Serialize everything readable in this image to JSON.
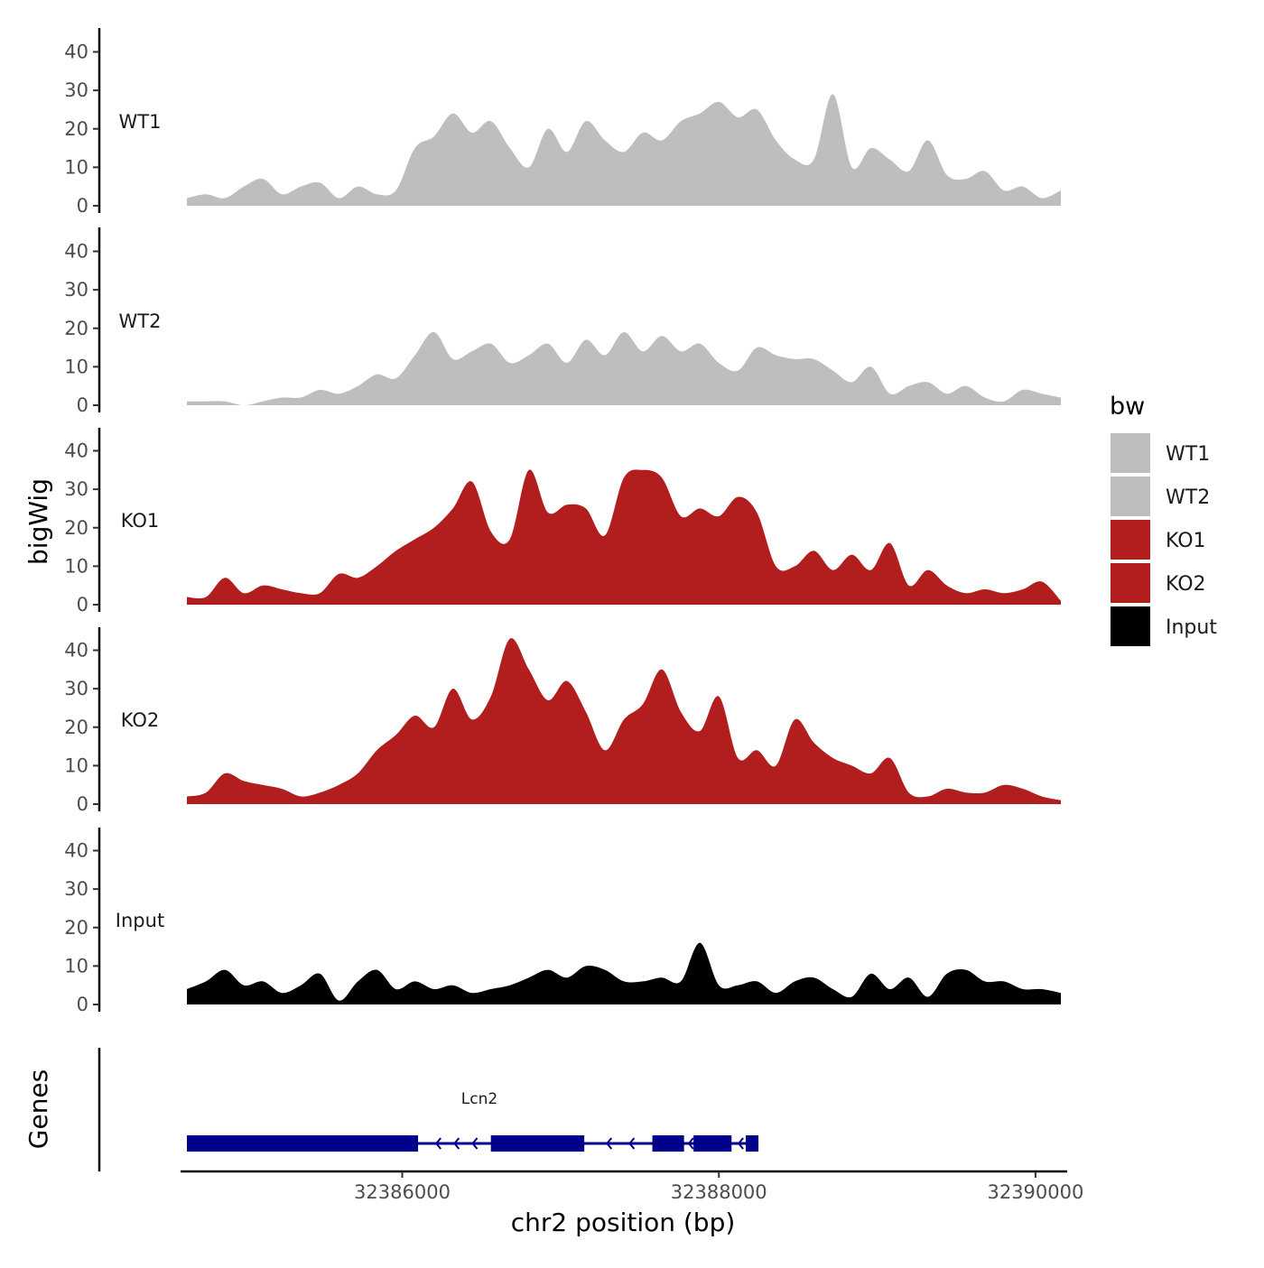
{
  "chart_data": {
    "type": "area",
    "ylabel": "bigWig",
    "xlabel": "chr2 position (bp)",
    "genes_label": "Genes",
    "x_range": [
      32384600,
      32390200
    ],
    "ylim": [
      0,
      45
    ],
    "y_ticks": [
      0,
      10,
      20,
      30,
      40
    ],
    "x_ticks": [
      32386000,
      32388000,
      32390000
    ],
    "x_tick_labels": [
      "32386000",
      "32388000",
      "32390000"
    ],
    "x": [
      32384640,
      32384760,
      32384880,
      32385000,
      32385120,
      32385240,
      32385360,
      32385480,
      32385600,
      32385720,
      32385840,
      32385960,
      32386080,
      32386200,
      32386320,
      32386440,
      32386560,
      32386680,
      32386800,
      32386920,
      32387040,
      32387160,
      32387280,
      32387400,
      32387520,
      32387640,
      32387760,
      32387880,
      32388000,
      32388120,
      32388240,
      32388360,
      32388480,
      32388600,
      32388720,
      32388840,
      32388960,
      32389080,
      32389200,
      32389320,
      32389440,
      32389560,
      32389680,
      32389800,
      32389920,
      32390040,
      32390160
    ],
    "series": [
      {
        "name": "WT1",
        "color": "#bebebe",
        "values": [
          2,
          3,
          2,
          5,
          7,
          3,
          5,
          6,
          2,
          5,
          3,
          4,
          15,
          18,
          24,
          19,
          22,
          15,
          10,
          20,
          14,
          22,
          17,
          14,
          19,
          17,
          22,
          24,
          27,
          23,
          25,
          17,
          12,
          12,
          29,
          10,
          15,
          12,
          9,
          17,
          8,
          7,
          9,
          4,
          5,
          2,
          4
        ]
      },
      {
        "name": "WT2",
        "color": "#bebebe",
        "values": [
          1,
          1,
          1,
          0,
          1,
          2,
          2,
          4,
          3,
          5,
          8,
          7,
          13,
          19,
          12,
          14,
          16,
          11,
          13,
          16,
          11,
          17,
          13,
          19,
          14,
          18,
          14,
          16,
          11,
          9,
          15,
          13,
          12,
          12,
          9,
          6,
          10,
          3,
          5,
          6,
          3,
          5,
          2,
          1,
          4,
          3,
          2
        ]
      },
      {
        "name": "KO1",
        "color": "#b21e1e",
        "values": [
          2,
          2,
          7,
          3,
          5,
          4,
          3,
          3,
          8,
          7,
          10,
          14,
          17,
          20,
          25,
          32,
          19,
          17,
          35,
          24,
          26,
          25,
          18,
          33,
          35,
          33,
          23,
          25,
          23,
          28,
          24,
          10,
          10,
          14,
          9,
          13,
          9,
          16,
          5,
          9,
          5,
          3,
          4,
          3,
          4,
          6,
          1
        ]
      },
      {
        "name": "KO2",
        "color": "#b21e1e",
        "values": [
          2,
          3,
          8,
          6,
          5,
          4,
          2,
          3,
          5,
          8,
          14,
          18,
          23,
          20,
          30,
          22,
          28,
          43,
          35,
          27,
          32,
          24,
          14,
          22,
          26,
          35,
          24,
          19,
          28,
          12,
          14,
          10,
          22,
          16,
          12,
          10,
          8,
          12,
          3,
          2,
          4,
          3,
          3,
          5,
          4,
          2,
          1
        ]
      },
      {
        "name": "Input",
        "color": "#000000",
        "values": [
          4,
          6,
          9,
          5,
          6,
          3,
          5,
          8,
          1,
          6,
          9,
          4,
          6,
          4,
          5,
          3,
          4,
          5,
          7,
          9,
          7,
          10,
          9,
          6,
          6,
          7,
          6,
          16,
          5,
          5,
          6,
          3,
          6,
          7,
          4,
          2,
          8,
          4,
          7,
          2,
          8,
          9,
          6,
          6,
          4,
          4,
          3
        ]
      }
    ],
    "gene": {
      "name": "Lcn2",
      "strand": "-",
      "start": 32384640,
      "end": 32388250,
      "color": "#00008b",
      "exons": [
        {
          "start": 32384640,
          "end": 32386100
        },
        {
          "start": 32386560,
          "end": 32387150
        },
        {
          "start": 32387580,
          "end": 32387780
        },
        {
          "start": 32387840,
          "end": 32388080
        },
        {
          "start": 32388170,
          "end": 32388250
        }
      ]
    },
    "legend": {
      "title": "bw",
      "position": "right",
      "entries": [
        {
          "label": "WT1",
          "color": "#bebebe"
        },
        {
          "label": "WT2",
          "color": "#bebebe"
        },
        {
          "label": "KO1",
          "color": "#b21e1e"
        },
        {
          "label": "KO2",
          "color": "#b21e1e"
        },
        {
          "label": "Input",
          "color": "#000000"
        }
      ]
    }
  }
}
